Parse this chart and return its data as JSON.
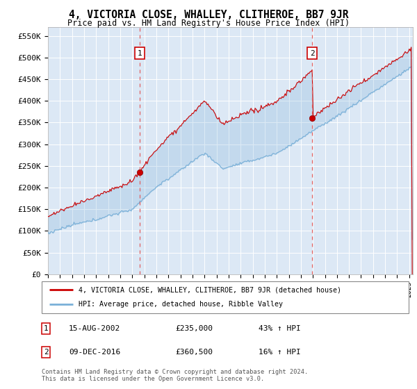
{
  "title": "4, VICTORIA CLOSE, WHALLEY, CLITHEROE, BB7 9JR",
  "subtitle": "Price paid vs. HM Land Registry's House Price Index (HPI)",
  "ylabel_ticks": [
    "£0",
    "£50K",
    "£100K",
    "£150K",
    "£200K",
    "£250K",
    "£300K",
    "£350K",
    "£400K",
    "£450K",
    "£500K",
    "£550K"
  ],
  "ytick_values": [
    0,
    50000,
    100000,
    150000,
    200000,
    250000,
    300000,
    350000,
    400000,
    450000,
    500000,
    550000
  ],
  "ylim": [
    0,
    570000
  ],
  "xlim_start": 1995.0,
  "xlim_end": 2025.3,
  "bg_color": "#dce8f5",
  "red_line_color": "#cc0000",
  "blue_line_color": "#7ab0d8",
  "transaction1_x": 2002.62,
  "transaction1_y": 235000,
  "transaction2_x": 2016.94,
  "transaction2_y": 360500,
  "legend_line1": "4, VICTORIA CLOSE, WHALLEY, CLITHEROE, BB7 9JR (detached house)",
  "legend_line2": "HPI: Average price, detached house, Ribble Valley",
  "table_row1": [
    "1",
    "15-AUG-2002",
    "£235,000",
    "43% ↑ HPI"
  ],
  "table_row2": [
    "2",
    "09-DEC-2016",
    "£360,500",
    "16% ↑ HPI"
  ],
  "footer": "Contains HM Land Registry data © Crown copyright and database right 2024.\nThis data is licensed under the Open Government Licence v3.0.",
  "grid_color": "#ffffff",
  "dashed_line_color": "#e06060"
}
